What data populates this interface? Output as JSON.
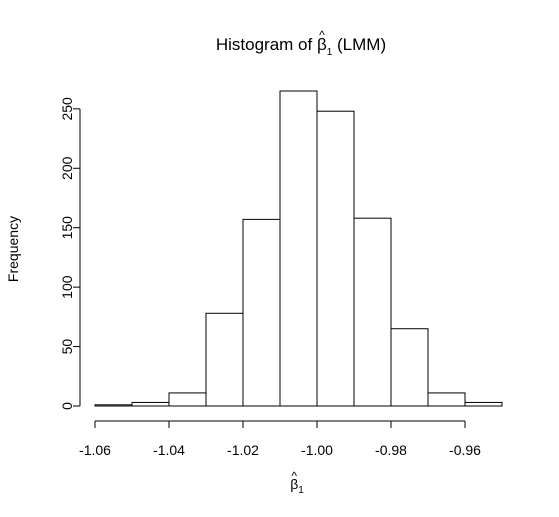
{
  "chart_data": {
    "type": "bar",
    "title": {
      "prefix": "Histogram of ",
      "symbol": "β",
      "accent": "^",
      "subscript": "1",
      "suffix": " (LMM)"
    },
    "xlabel": {
      "symbol": "β",
      "accent": "^",
      "subscript": "1"
    },
    "ylabel": "Frequency",
    "bins": [
      {
        "x0": -1.06,
        "x1": -1.05,
        "count": 1
      },
      {
        "x0": -1.05,
        "x1": -1.04,
        "count": 3
      },
      {
        "x0": -1.04,
        "x1": -1.03,
        "count": 11
      },
      {
        "x0": -1.03,
        "x1": -1.02,
        "count": 78
      },
      {
        "x0": -1.02,
        "x1": -1.01,
        "count": 157
      },
      {
        "x0": -1.01,
        "x1": -1.0,
        "count": 265
      },
      {
        "x0": -1.0,
        "x1": -0.99,
        "count": 248
      },
      {
        "x0": -0.99,
        "x1": -0.98,
        "count": 158
      },
      {
        "x0": -0.98,
        "x1": -0.97,
        "count": 65
      },
      {
        "x0": -0.97,
        "x1": -0.96,
        "count": 11
      },
      {
        "x0": -0.96,
        "x1": -0.95,
        "count": 3
      }
    ],
    "xticks": [
      -1.06,
      -1.04,
      -1.02,
      -1.0,
      -0.98,
      -0.96
    ],
    "xtick_labels": [
      "-1.06",
      "-1.04",
      "-1.02",
      "-1.00",
      "-0.98",
      "-0.96"
    ],
    "yticks": [
      0,
      50,
      100,
      150,
      200,
      250
    ],
    "ytick_labels": [
      "0",
      "50",
      "100",
      "150",
      "200",
      "250"
    ],
    "xlim": [
      -1.06,
      -0.95
    ],
    "ylim": [
      0,
      265
    ],
    "grid": false,
    "bar_fill": "#ffffff",
    "bar_stroke": "#000000"
  }
}
